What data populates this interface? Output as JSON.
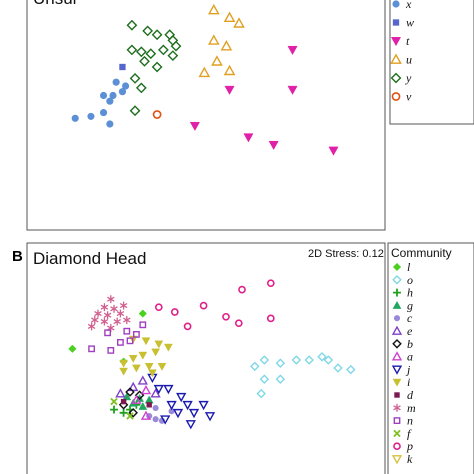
{
  "chart_data": [
    {
      "type": "scatter",
      "panel_label": "",
      "title": "Unsur",
      "stress": "",
      "legend_title": "",
      "xlabel": "",
      "ylabel": "",
      "xlim": [
        0,
        100
      ],
      "ylim": [
        0,
        100
      ],
      "grid": false,
      "legend_position": "right",
      "series": [
        {
          "name": "x",
          "marker": "circle",
          "filled": true,
          "color": "#5b8fd6",
          "points": [
            [
              8,
              43
            ],
            [
              13,
              44
            ],
            [
              17,
              46
            ],
            [
              19,
              52
            ],
            [
              17,
              55
            ],
            [
              20,
              55
            ],
            [
              23,
              57
            ],
            [
              24,
              60
            ],
            [
              21,
              62
            ],
            [
              19,
              40
            ]
          ]
        },
        {
          "name": "w",
          "marker": "square",
          "filled": true,
          "color": "#5566cc",
          "points": [
            [
              23,
              70
            ]
          ]
        },
        {
          "name": "t",
          "marker": "triangle-down",
          "filled": true,
          "color": "#e020a8",
          "points": [
            [
              77,
              79
            ],
            [
              57,
              58
            ],
            [
              77,
              58
            ],
            [
              46,
              39
            ],
            [
              63,
              33
            ],
            [
              71,
              29
            ],
            [
              90,
              26
            ]
          ]
        },
        {
          "name": "u",
          "marker": "triangle-up",
          "filled": false,
          "color": "#e0a020",
          "points": [
            [
              52,
              100
            ],
            [
              57,
              96
            ],
            [
              60,
              93
            ],
            [
              52,
              84
            ],
            [
              56,
              81
            ],
            [
              53,
              73
            ],
            [
              57,
              68
            ],
            [
              49,
              67
            ]
          ]
        },
        {
          "name": "y",
          "marker": "diamond",
          "filled": false,
          "color": "#1e6e1e",
          "points": [
            [
              26,
              92
            ],
            [
              31,
              89
            ],
            [
              34,
              87
            ],
            [
              38,
              87
            ],
            [
              39,
              84
            ],
            [
              40,
              81
            ],
            [
              36,
              79
            ],
            [
              39,
              76
            ],
            [
              26,
              79
            ],
            [
              29,
              78
            ],
            [
              32,
              77
            ],
            [
              30,
              73
            ],
            [
              34,
              70
            ],
            [
              27,
              64
            ],
            [
              29,
              59
            ],
            [
              27,
              47
            ]
          ]
        },
        {
          "name": "v",
          "marker": "circle",
          "filled": false,
          "color": "#e05010",
          "points": [
            [
              34,
              45
            ]
          ]
        }
      ]
    },
    {
      "type": "scatter",
      "panel_label": "B",
      "title": "Diamond Head",
      "stress": "2D Stress: 0.12",
      "legend_title": "Community",
      "xlabel": "",
      "ylabel": "",
      "xlim": [
        0,
        100
      ],
      "ylim": [
        0,
        100
      ],
      "grid": false,
      "legend_position": "right",
      "series": [
        {
          "name": "l",
          "marker": "diamond",
          "filled": true,
          "color": "#4cd020",
          "points": [
            [
              29,
              79
            ],
            [
              7,
              57
            ],
            [
              23,
              49
            ]
          ]
        },
        {
          "name": "o",
          "marker": "diamond",
          "filled": false,
          "color": "#80d8e8",
          "points": [
            [
              64,
              46
            ],
            [
              67,
              50
            ],
            [
              72,
              48
            ],
            [
              77,
              50
            ],
            [
              81,
              50
            ],
            [
              85,
              52
            ],
            [
              87,
              50
            ],
            [
              90,
              45
            ],
            [
              94,
              44
            ],
            [
              67,
              38
            ],
            [
              72,
              38
            ],
            [
              66,
              29
            ]
          ]
        },
        {
          "name": "h",
          "marker": "plus",
          "filled": false,
          "color": "#20a020",
          "points": [
            [
              20,
              19
            ],
            [
              23,
              17
            ],
            [
              25,
              19
            ],
            [
              27,
              22
            ]
          ]
        },
        {
          "name": "g",
          "marker": "triangle-up",
          "filled": true,
          "color": "#20a860",
          "points": [
            [
              24,
              27
            ],
            [
              28,
              26
            ],
            [
              31,
              25
            ],
            [
              26,
              23
            ],
            [
              29,
              21
            ]
          ]
        },
        {
          "name": "c",
          "marker": "circle",
          "filled": true,
          "color": "#9a88d8",
          "points": [
            [
              31,
              15
            ],
            [
              33,
              13
            ],
            [
              35,
              12
            ],
            [
              33,
              20
            ],
            [
              38,
              18
            ]
          ]
        },
        {
          "name": "e",
          "marker": "triangle-up",
          "filled": false,
          "color": "#8040c8",
          "points": [
            [
              26,
              33
            ],
            [
              29,
              37
            ],
            [
              22,
              29
            ],
            [
              33,
              29
            ]
          ]
        },
        {
          "name": "b",
          "marker": "diamond",
          "filled": false,
          "color": "#111111",
          "points": [
            [
              25,
              30
            ],
            [
              28,
              28
            ],
            [
              26,
              17
            ],
            [
              23,
              22
            ]
          ]
        },
        {
          "name": "a",
          "marker": "triangle-up",
          "filled": false,
          "color": "#d040d0",
          "points": [
            [
              30,
              31
            ],
            [
              27,
              25
            ],
            [
              30,
              15
            ]
          ]
        },
        {
          "name": "j",
          "marker": "triangle-down",
          "filled": false,
          "color": "#1a1ab0",
          "points": [
            [
              32,
              39
            ],
            [
              34,
              32
            ],
            [
              37,
              32
            ],
            [
              41,
              27
            ],
            [
              43,
              22
            ],
            [
              48,
              22
            ],
            [
              45,
              17
            ],
            [
              50,
              15
            ],
            [
              38,
              22
            ],
            [
              40,
              17
            ],
            [
              36,
              13
            ],
            [
              44,
              10
            ]
          ]
        },
        {
          "name": "i",
          "marker": "triangle-down",
          "filled": true,
          "color": "#c8c030",
          "points": [
            [
              26,
              63
            ],
            [
              30,
              62
            ],
            [
              34,
              60
            ],
            [
              37,
              58
            ],
            [
              33,
              55
            ],
            [
              29,
              53
            ],
            [
              26,
              51
            ],
            [
              23,
              48
            ],
            [
              27,
              45
            ],
            [
              31,
              46
            ],
            [
              35,
              46
            ],
            [
              32,
              42
            ],
            [
              23,
              43
            ]
          ]
        },
        {
          "name": "d",
          "marker": "square",
          "filled": true,
          "color": "#7a1a50",
          "points": [
            [
              23,
              24
            ],
            [
              31,
              22
            ]
          ]
        },
        {
          "name": "m",
          "marker": "asterisk",
          "filled": false,
          "color": "#d06090",
          "points": [
            [
              19,
              88
            ],
            [
              17,
              83
            ],
            [
              20,
              82
            ],
            [
              22,
              79
            ],
            [
              18,
              78
            ],
            [
              15,
              79
            ],
            [
              14,
              75
            ],
            [
              17,
              74
            ],
            [
              21,
              74
            ],
            [
              19,
              70
            ],
            [
              13,
              71
            ],
            [
              23,
              84
            ],
            [
              24,
              75
            ]
          ]
        },
        {
          "name": "n",
          "marker": "square",
          "filled": false,
          "color": "#a040c0",
          "points": [
            [
              24,
              68
            ],
            [
              27,
              66
            ],
            [
              25,
              62
            ],
            [
              22,
              61
            ],
            [
              19,
              56
            ],
            [
              13,
              57
            ],
            [
              18,
              67
            ],
            [
              29,
              72
            ]
          ]
        },
        {
          "name": "f",
          "marker": "x",
          "filled": false,
          "color": "#80c020",
          "points": [
            [
              25,
              15
            ],
            [
              20,
              24
            ]
          ]
        },
        {
          "name": "p",
          "marker": "circle",
          "filled": false,
          "color": "#e0208a",
          "points": [
            [
              34,
              83
            ],
            [
              39,
              80
            ],
            [
              48,
              84
            ],
            [
              60,
              94
            ],
            [
              69,
              98
            ],
            [
              55,
              77
            ],
            [
              59,
              73
            ],
            [
              69,
              76
            ],
            [
              43,
              71
            ]
          ]
        },
        {
          "name": "k",
          "marker": "triangle-down",
          "filled": false,
          "color": "#d8c040",
          "points": []
        }
      ]
    }
  ]
}
